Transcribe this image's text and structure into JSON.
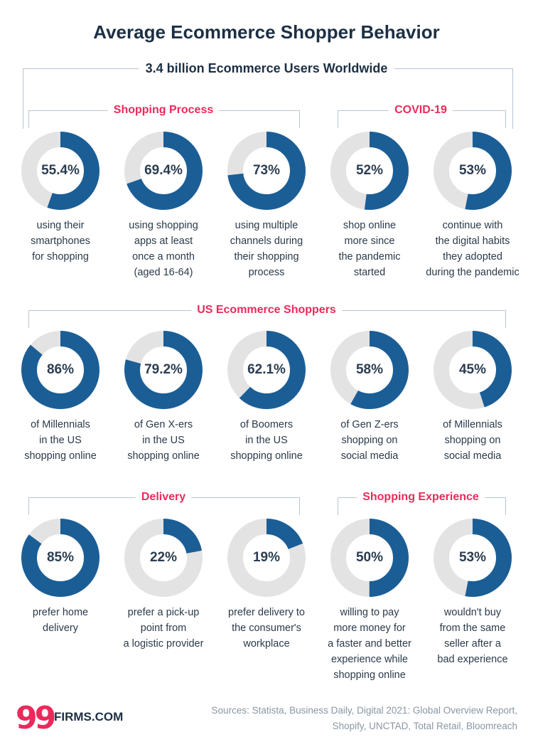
{
  "title": "Average Ecommerce Shopper Behavior",
  "subtitle": "3.4 billion Ecommerce Users Worldwide",
  "colors": {
    "accent": "#ea2a5a",
    "fill": "#1b5e96",
    "track": "#e3e3e3",
    "text": "#2b3a4a",
    "dark": "#1c2f44"
  },
  "sections": {
    "shopping_process": "Shopping Process",
    "covid": "COVID-19",
    "us_shoppers": "US Ecommerce Shoppers",
    "delivery": "Delivery",
    "experience": "Shopping Experience"
  },
  "chart_data": {
    "type": "donut",
    "title": "Average Ecommerce Shopper Behavior",
    "items": [
      {
        "label": "55.4%",
        "value": 55.4,
        "section": "Shopping Process",
        "desc": [
          "using their",
          "smartphones",
          "for shopping"
        ]
      },
      {
        "label": "69.4%",
        "value": 69.4,
        "section": "Shopping Process",
        "desc": [
          "using shopping",
          "apps at least",
          "once a month",
          "(aged 16-64)"
        ]
      },
      {
        "label": "73%",
        "value": 73,
        "section": "Shopping Process",
        "desc": [
          "using multiple",
          "channels during",
          "their shopping",
          "process"
        ]
      },
      {
        "label": "52%",
        "value": 52,
        "section": "COVID-19",
        "desc": [
          "shop online",
          "more since",
          "the pandemic",
          "started"
        ]
      },
      {
        "label": "53%",
        "value": 53,
        "section": "COVID-19",
        "desc": [
          "continue with",
          "the digital habits",
          "they adopted",
          "during the pandemic"
        ]
      },
      {
        "label": "86%",
        "value": 86,
        "section": "US Ecommerce Shoppers",
        "desc": [
          "of Millennials",
          "in the US",
          "shopping online"
        ]
      },
      {
        "label": "79.2%",
        "value": 79.2,
        "section": "US Ecommerce Shoppers",
        "desc": [
          "of Gen X-ers",
          "in the US",
          "shopping online"
        ]
      },
      {
        "label": "62.1%",
        "value": 62.1,
        "section": "US Ecommerce Shoppers",
        "desc": [
          "of Boomers",
          "in the US",
          "shopping online"
        ]
      },
      {
        "label": "58%",
        "value": 58,
        "section": "US Ecommerce Shoppers",
        "desc": [
          "of Gen Z-ers",
          "shopping on",
          "social media"
        ]
      },
      {
        "label": "45%",
        "value": 45,
        "section": "US Ecommerce Shoppers",
        "desc": [
          "of Millennials",
          "shopping on",
          "social media"
        ]
      },
      {
        "label": "85%",
        "value": 85,
        "section": "Delivery",
        "desc": [
          "prefer home",
          "delivery"
        ]
      },
      {
        "label": "22%",
        "value": 22,
        "section": "Delivery",
        "desc": [
          "prefer a pick-up",
          "point from",
          "a logistic provider"
        ]
      },
      {
        "label": "19%",
        "value": 19,
        "section": "Delivery",
        "desc": [
          "prefer delivery to",
          "the consumer's",
          "workplace"
        ]
      },
      {
        "label": "50%",
        "value": 50,
        "section": "Shopping Experience",
        "desc": [
          "willing to pay",
          "more money for",
          "a faster and better",
          "experience while",
          "shopping online"
        ]
      },
      {
        "label": "53%",
        "value": 53,
        "section": "Shopping Experience",
        "desc": [
          "wouldn't buy",
          "from the same",
          "seller after a",
          "bad experience"
        ]
      }
    ]
  },
  "footer": {
    "logo_number": "99",
    "logo_text": "FIRMS.COM",
    "sources_line1": "Sources: Statista, Business Daily, Digital 2021: Global Overview Report,",
    "sources_line2": "Shopify, UNCTAD, Total Retail, Bloomreach"
  }
}
